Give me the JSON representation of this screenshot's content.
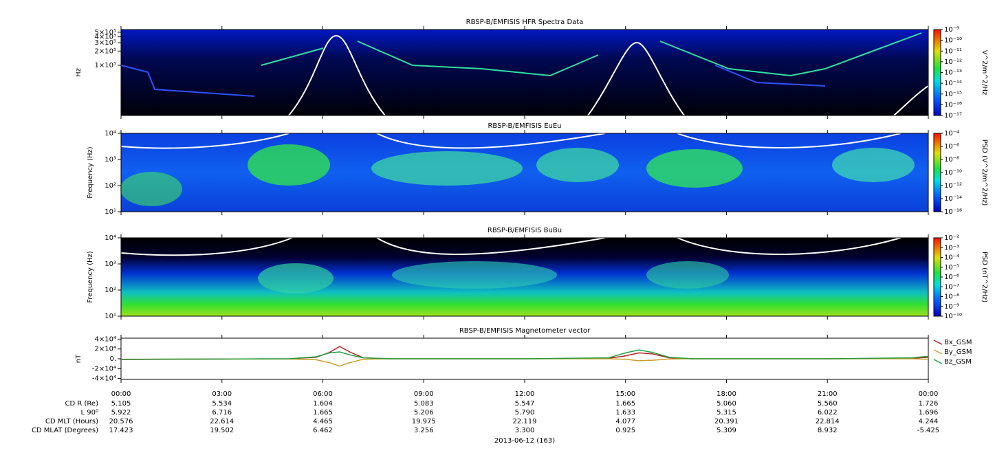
{
  "chart_data": [
    {
      "type": "spectrogram",
      "title": "RBSP-B/EMFISIS  HFR Spectra Data",
      "y_label": "Hz",
      "log_y": true,
      "ylim": [
        8700,
        570000
      ],
      "yticks": [
        {
          "value": 500000,
          "label": "5×10⁵"
        },
        {
          "value": 400000,
          "label": "4×10⁵"
        },
        {
          "value": 300000,
          "label": "3×10⁵"
        },
        {
          "value": 200000,
          "label": "2×10⁵"
        },
        {
          "value": 100000,
          "label": "1×10⁵"
        }
      ],
      "colorbar_label": "V^2/m^2/Hz",
      "clim": [
        1e-17,
        1e-09
      ],
      "cticks": [
        {
          "value": 1e-09,
          "label": "10⁻⁹"
        },
        {
          "value": 1e-10,
          "label": "10⁻¹⁰"
        },
        {
          "value": 1e-11,
          "label": "10⁻¹¹"
        },
        {
          "value": 1e-12,
          "label": "10⁻¹²"
        },
        {
          "value": 1e-13,
          "label": "10⁻¹³"
        },
        {
          "value": 1e-14,
          "label": "10⁻¹⁴"
        },
        {
          "value": 1e-15,
          "label": "10⁻¹⁵"
        },
        {
          "value": 1e-16,
          "label": "10⁻¹⁶"
        },
        {
          "value": 1e-17,
          "label": "10⁻¹⁷"
        }
      ]
    },
    {
      "type": "spectrogram",
      "title": "RBSP-B/EMFISIS  EuEu",
      "y_label": "Frequency (Hz)",
      "log_y": true,
      "ylim": [
        10,
        10000
      ],
      "yticks": [
        {
          "value": 10000,
          "label": "10⁴"
        },
        {
          "value": 1000,
          "label": "10³"
        },
        {
          "value": 100,
          "label": "10²"
        },
        {
          "value": 10,
          "label": "10¹"
        }
      ],
      "colorbar_label": "PSD (V^2/m^2/Hz)",
      "clim": [
        1e-16,
        0.0001
      ],
      "cticks": [
        {
          "value": 0.0001,
          "label": "10⁻⁴"
        },
        {
          "value": 1e-06,
          "label": "10⁻⁶"
        },
        {
          "value": 1e-08,
          "label": "10⁻⁸"
        },
        {
          "value": 1e-10,
          "label": "10⁻¹⁰"
        },
        {
          "value": 1e-12,
          "label": "10⁻¹²"
        },
        {
          "value": 1e-14,
          "label": "10⁻¹⁴"
        },
        {
          "value": 1e-16,
          "label": "10⁻¹⁶"
        }
      ]
    },
    {
      "type": "spectrogram",
      "title": "RBSP-B/EMFISIS  BuBu",
      "y_label": "Frequency (Hz)",
      "log_y": true,
      "ylim": [
        10,
        10000
      ],
      "yticks": [
        {
          "value": 10000,
          "label": "10⁴"
        },
        {
          "value": 1000,
          "label": "10³"
        },
        {
          "value": 100,
          "label": "10²"
        },
        {
          "value": 10,
          "label": "10¹"
        }
      ],
      "colorbar_label": "PSD (nT^2/Hz)",
      "clim": [
        1e-10,
        0.01
      ],
      "cticks": [
        {
          "value": 0.01,
          "label": "10⁻²"
        },
        {
          "value": 0.001,
          "label": "10⁻³"
        },
        {
          "value": 0.0001,
          "label": "10⁻⁴"
        },
        {
          "value": 1e-05,
          "label": "10⁻⁵"
        },
        {
          "value": 1e-06,
          "label": "10⁻⁶"
        },
        {
          "value": 1e-07,
          "label": "10⁻⁷"
        },
        {
          "value": 1e-08,
          "label": "10⁻⁸"
        },
        {
          "value": 1e-09,
          "label": "10⁻⁹"
        },
        {
          "value": 1e-10,
          "label": "10⁻¹⁰"
        }
      ]
    },
    {
      "type": "line",
      "title": "RBSP-B/EMFISIS  Magnetometer vector",
      "y_label": "nT",
      "x_label": "2013-06-12 (163)",
      "ylim": [
        -42000,
        42000
      ],
      "yticks": [
        {
          "value": 40000,
          "label": "4×10⁴"
        },
        {
          "value": 20000,
          "label": "2×10⁴"
        },
        {
          "value": 0,
          "label": "0."
        },
        {
          "value": -20000,
          "label": "-2×10⁴"
        },
        {
          "value": -40000,
          "label": "-4×10⁴"
        }
      ],
      "xlim": [
        0,
        24
      ],
      "xticks": [
        {
          "value": 0,
          "label": "00:00"
        },
        {
          "value": 3,
          "label": "03:00"
        },
        {
          "value": 6,
          "label": "06:00"
        },
        {
          "value": 9,
          "label": "09:00"
        },
        {
          "value": 12,
          "label": "12:00"
        },
        {
          "value": 15,
          "label": "15:00"
        },
        {
          "value": 18,
          "label": "18:00"
        },
        {
          "value": 21,
          "label": "21:00"
        },
        {
          "value": 24,
          "label": "00:00"
        }
      ],
      "x": [
        0,
        3,
        5,
        5.8,
        6.2,
        6.5,
        6.8,
        7.2,
        8,
        12,
        14.5,
        15,
        15.4,
        15.8,
        16.3,
        17,
        21,
        23.5,
        24
      ],
      "series": [
        {
          "name": "Bx_GSM",
          "color": "#b22222",
          "values": [
            -1500,
            -500,
            0,
            3000,
            13000,
            25000,
            14000,
            2000,
            0,
            0,
            1000,
            6000,
            12000,
            10000,
            2000,
            0,
            0,
            1000,
            3000
          ]
        },
        {
          "name": "By_GSM",
          "color": "#c8a028",
          "values": [
            -1000,
            -500,
            -500,
            -2000,
            -8000,
            -15000,
            -8000,
            -1000,
            0,
            0,
            0,
            -1000,
            -4000,
            -3000,
            -500,
            0,
            0,
            0,
            -1000
          ]
        },
        {
          "name": "Bz_GSM",
          "color": "#22a040",
          "values": [
            -1000,
            -500,
            0,
            4000,
            12000,
            14000,
            8000,
            2000,
            0,
            0,
            2000,
            12000,
            18000,
            13000,
            3000,
            0,
            0,
            2000,
            5000
          ]
        }
      ],
      "ephemeris": [
        {
          "label": "CD R (Re)",
          "values": [
            "5.105",
            "5.534",
            "1.604",
            "5.083",
            "5.547",
            "1.665",
            "5.060",
            "5.560",
            "1.726"
          ]
        },
        {
          "label": "L 90⁰",
          "values": [
            "5.922",
            "6.716",
            "1.665",
            "5.206",
            "5.790",
            "1.633",
            "5.315",
            "6.022",
            "1.696"
          ]
        },
        {
          "label": "CD MLT (Hours)",
          "values": [
            "20.576",
            "22.614",
            "4.465",
            "19.975",
            "22.119",
            "4.077",
            "20.391",
            "22.814",
            "4.244"
          ]
        },
        {
          "label": "CD MLAT (Degrees)",
          "values": [
            "17.423",
            "19.502",
            "6.462",
            "3.256",
            "3.300",
            "0.925",
            "5.309",
            "8.932",
            "-5.425"
          ]
        }
      ]
    }
  ]
}
